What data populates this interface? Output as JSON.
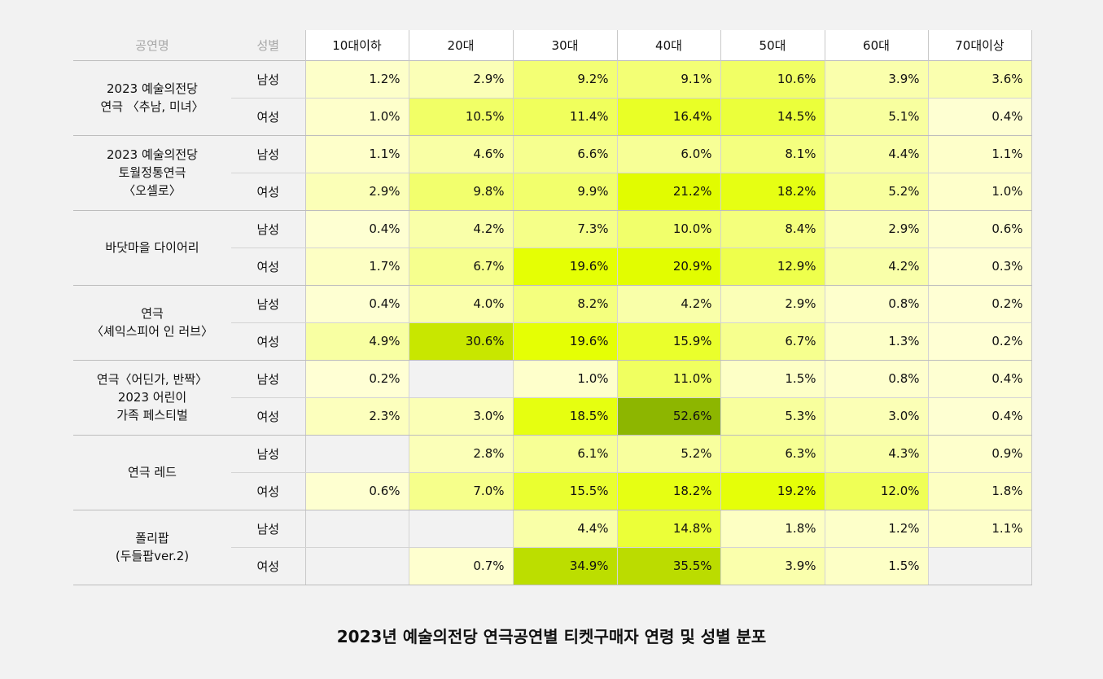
{
  "chart_data": {
    "type": "heatmap",
    "title": "2023년 예술의전당 연극공연별 티켓구매자 연령 및 성별 분포",
    "header": {
      "show": "공연명",
      "gender": "성별"
    },
    "ages": [
      "10대이하",
      "20대",
      "30대",
      "40대",
      "50대",
      "60대",
      "70대이상"
    ],
    "genders": [
      "남성",
      "여성"
    ],
    "value_suffix": "%",
    "color_scale": {
      "low": "#ffffd6",
      "mid": "#e4ff00",
      "high": "#8db600",
      "empty": "#f2f2f2",
      "max": 52.6
    },
    "shows": [
      {
        "name_lines": [
          "2023 예술의전당",
          "연극 〈추남, 미녀〉"
        ],
        "rows": [
          [
            1.2,
            2.9,
            9.2,
            9.1,
            10.6,
            3.9,
            3.6
          ],
          [
            1.0,
            10.5,
            11.4,
            16.4,
            14.5,
            5.1,
            0.4
          ]
        ]
      },
      {
        "name_lines": [
          "2023 예술의전당",
          "토월정통연극",
          "〈오셀로〉"
        ],
        "rows": [
          [
            1.1,
            4.6,
            6.6,
            6.0,
            8.1,
            4.4,
            1.1
          ],
          [
            2.9,
            9.8,
            9.9,
            21.2,
            18.2,
            5.2,
            1.0
          ]
        ]
      },
      {
        "name_lines": [
          "바닷마을 다이어리"
        ],
        "rows": [
          [
            0.4,
            4.2,
            7.3,
            10.0,
            8.4,
            2.9,
            0.6
          ],
          [
            1.7,
            6.7,
            19.6,
            20.9,
            12.9,
            4.2,
            0.3
          ]
        ]
      },
      {
        "name_lines": [
          "연극",
          "〈셰익스피어 인 러브〉"
        ],
        "rows": [
          [
            0.4,
            4.0,
            8.2,
            4.2,
            2.9,
            0.8,
            0.2
          ],
          [
            4.9,
            30.6,
            19.6,
            15.9,
            6.7,
            1.3,
            0.2
          ]
        ]
      },
      {
        "name_lines": [
          "연극〈어딘가, 반짝〉",
          "2023 어린이",
          "가족 페스티벌"
        ],
        "rows": [
          [
            0.2,
            null,
            1.0,
            11.0,
            1.5,
            0.8,
            0.4
          ],
          [
            2.3,
            3.0,
            18.5,
            52.6,
            5.3,
            3.0,
            0.4
          ]
        ]
      },
      {
        "name_lines": [
          "연극 레드"
        ],
        "rows": [
          [
            null,
            2.8,
            6.1,
            5.2,
            6.3,
            4.3,
            0.9
          ],
          [
            0.6,
            7.0,
            15.5,
            18.2,
            19.2,
            12.0,
            1.8
          ]
        ]
      },
      {
        "name_lines": [
          "폴리팝",
          "(두들팝ver.2)"
        ],
        "rows": [
          [
            null,
            null,
            4.4,
            14.8,
            1.8,
            1.2,
            1.1
          ],
          [
            null,
            0.7,
            34.9,
            35.5,
            3.9,
            1.5,
            null
          ]
        ]
      }
    ]
  }
}
